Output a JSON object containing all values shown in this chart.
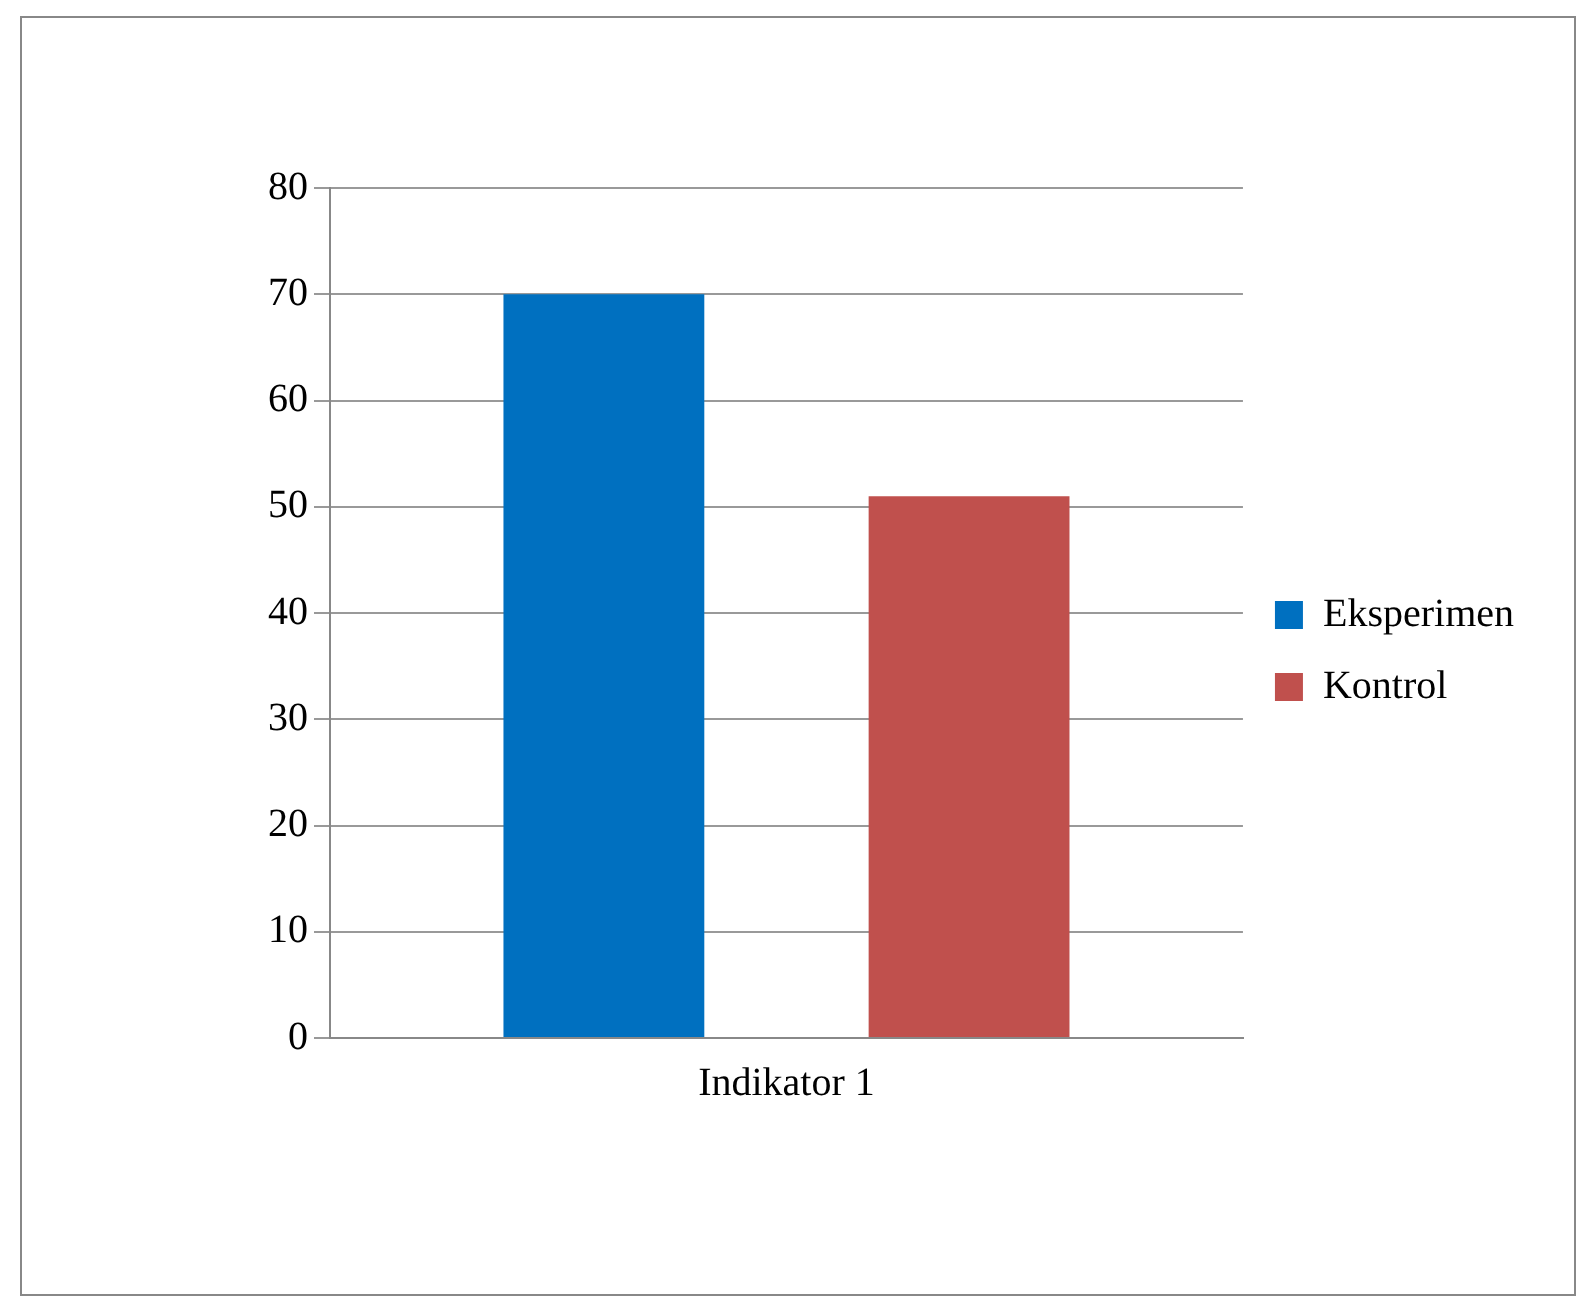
{
  "chart_data": {
    "type": "bar",
    "categories": [
      "Indikator 1"
    ],
    "series": [
      {
        "name": "Eksperimen",
        "color": "#0070c0",
        "values": [
          70
        ]
      },
      {
        "name": "Kontrol",
        "color": "#c0504d",
        "values": [
          51
        ]
      }
    ],
    "ylim": [
      0,
      80
    ],
    "yticks": [
      0,
      10,
      20,
      30,
      40,
      50,
      60,
      70,
      80
    ],
    "grid": "y",
    "legend": "right"
  }
}
